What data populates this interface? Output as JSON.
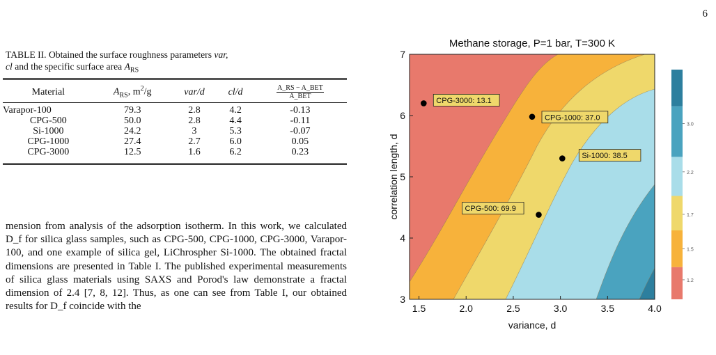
{
  "page_number": "6",
  "table": {
    "caption_prefix": "TABLE II.",
    "caption_text": "Obtained the surface roughness parameters",
    "caption_var": "var,",
    "caption_cl": "cl",
    "caption_mid": "and the specific surface area",
    "caption_A": "A",
    "caption_sub": "RS",
    "headers": {
      "material": "Material",
      "area": "A",
      "area_sub": "RS",
      "area_unit": ", m",
      "area_unit_sup": "2",
      "area_unit_tail": "/g",
      "var": "var/d",
      "cl": "cl/d",
      "ratio_num": "A_RS − A_BET",
      "ratio_den": "A_BET"
    },
    "rows": [
      {
        "material": "Varapor-100",
        "area": "79.3",
        "var": "2.8",
        "cl": "4.2",
        "ratio": "-0.13"
      },
      {
        "material": "CPG-500",
        "area": "50.0",
        "var": "2.8",
        "cl": "4.4",
        "ratio": "-0.11"
      },
      {
        "material": "Si-1000",
        "area": "24.2",
        "var": "3",
        "cl": "5.3",
        "ratio": "-0.07"
      },
      {
        "material": "CPG-1000",
        "area": "27.4",
        "var": "2.7",
        "cl": "6.0",
        "ratio": "0.05"
      },
      {
        "material": "CPG-3000",
        "area": "12.5",
        "var": "1.6",
        "cl": "6.2",
        "ratio": "0.23"
      }
    ]
  },
  "body_text": "mension from analysis of the adsorption isotherm. In this work, we calculated D_f for silica glass samples, such as CPG-500, CPG-1000, CPG-3000, Varapor-100, and one example of silica gel, LiChrospher Si-1000. The obtained fractal dimensions are presented in Table I. The published experimental measurements of silica glass materials using SAXS and Porod's law demonstrate a fractal dimension of 2.4 [7, 8, 12]. Thus, as one can see from Table I, our obtained results for D_f coincide with the",
  "chart_data": {
    "type": "contour",
    "title": "Methane storage, P=1 bar, T=300 K",
    "xlabel": "variance, d",
    "ylabel": "correlation length, d",
    "xlim": [
      1.4,
      4.0
    ],
    "ylim": [
      3.0,
      7.0
    ],
    "x_ticks": [
      "1.5",
      "2.0",
      "2.5",
      "3.0",
      "3.5",
      "4.0"
    ],
    "y_ticks": [
      "3",
      "4",
      "5",
      "6",
      "7"
    ],
    "colorbar_ticks": [
      "3.00",
      "2.25",
      "1.75",
      "1.50",
      "1.25"
    ],
    "colors": {
      "level1": "#e8796c",
      "level2": "#f7b23b",
      "level3": "#efd86b",
      "level4": "#a9dde9",
      "level5": "#4aa3bf",
      "level6": "#2d7f9e",
      "marker": "#000000"
    },
    "points": [
      {
        "label": "CPG-3000: 13.1",
        "x": 1.55,
        "y": 6.2
      },
      {
        "label": "CPG-1000: 37.0",
        "x": 2.7,
        "y": 5.98
      },
      {
        "label": "Si-1000: 38.5",
        "x": 3.02,
        "y": 5.3
      },
      {
        "label": "CPG-500: 69.9",
        "x": 2.77,
        "y": 4.38
      }
    ]
  }
}
